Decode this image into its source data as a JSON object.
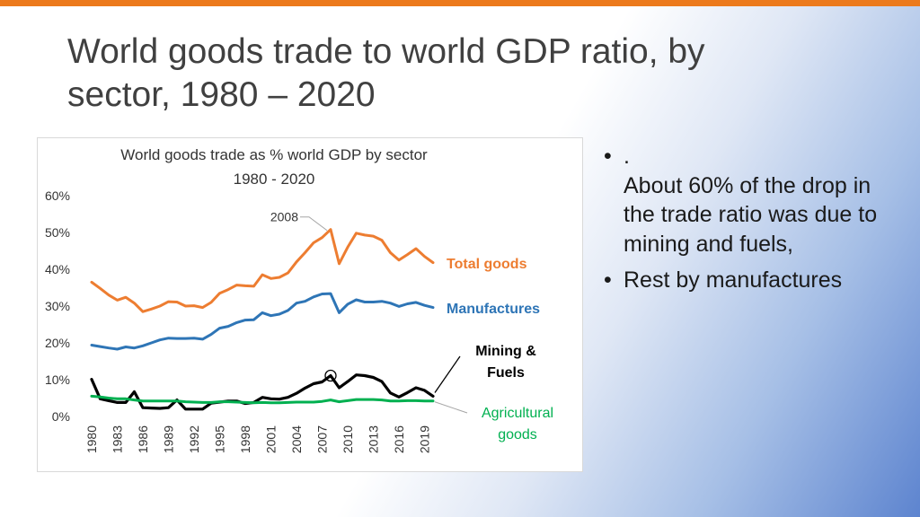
{
  "slide": {
    "title": "World goods trade to world GDP ratio, by sector, 1980 – 2020",
    "bullet_symbol": "•",
    "bullets": [
      ".\nAbout 60% of the drop in the trade ratio was due to mining and fuels,",
      "Rest by manufactures"
    ]
  },
  "chart_data": {
    "type": "line",
    "title": "World goods trade as % world GDP by sector",
    "subtitle": "1980 - 2020",
    "xlabel": "",
    "ylabel": "",
    "ylim": [
      0,
      60
    ],
    "y_ticks": [
      "0%",
      "10%",
      "20%",
      "30%",
      "40%",
      "50%",
      "60%"
    ],
    "x_ticks": [
      "1980",
      "1983",
      "1986",
      "1989",
      "1992",
      "1995",
      "1998",
      "2001",
      "2004",
      "2007",
      "2010",
      "2013",
      "2016",
      "2019"
    ],
    "x": [
      1980,
      1981,
      1982,
      1983,
      1984,
      1985,
      1986,
      1987,
      1988,
      1989,
      1990,
      1991,
      1992,
      1993,
      1994,
      1995,
      1996,
      1997,
      1998,
      1999,
      2000,
      2001,
      2002,
      2003,
      2004,
      2005,
      2006,
      2007,
      2008,
      2009,
      2010,
      2011,
      2012,
      2013,
      2014,
      2015,
      2016,
      2017,
      2018,
      2019,
      2020
    ],
    "grid": false,
    "legend": "none",
    "series": [
      {
        "name": "Total goods",
        "color": "#ed7d31",
        "values": [
          36.5,
          34.8,
          33.0,
          31.6,
          32.4,
          30.8,
          28.5,
          29.2,
          30.0,
          31.2,
          31.1,
          30.0,
          30.1,
          29.6,
          31.0,
          33.5,
          34.5,
          35.7,
          35.5,
          35.4,
          38.5,
          37.5,
          37.8,
          39.0,
          42.0,
          44.5,
          47.2,
          48.6,
          50.8,
          41.5,
          46.0,
          49.8,
          49.3,
          49.0,
          47.9,
          44.5,
          42.5,
          44.0,
          45.6,
          43.5,
          41.8
        ]
      },
      {
        "name": "Manufactures",
        "color": "#2e75b6",
        "values": [
          19.4,
          19.0,
          18.6,
          18.3,
          18.9,
          18.6,
          19.2,
          20.0,
          20.8,
          21.3,
          21.2,
          21.2,
          21.3,
          21.0,
          22.3,
          24.0,
          24.5,
          25.5,
          26.2,
          26.3,
          28.2,
          27.4,
          27.8,
          28.8,
          30.8,
          31.3,
          32.5,
          33.3,
          33.4,
          28.2,
          30.5,
          31.7,
          31.1,
          31.1,
          31.3,
          30.8,
          29.9,
          30.6,
          31.0,
          30.2,
          29.6
        ]
      },
      {
        "name": "Mining & Fuels",
        "color": "#000000",
        "values": [
          10.1,
          4.8,
          4.3,
          3.8,
          3.8,
          6.7,
          2.4,
          2.3,
          2.2,
          2.4,
          4.5,
          2.0,
          2.0,
          2.0,
          3.6,
          3.9,
          4.2,
          4.2,
          3.5,
          3.8,
          5.2,
          4.8,
          4.7,
          5.2,
          6.3,
          7.7,
          8.9,
          9.4,
          11.1,
          7.8,
          9.5,
          11.3,
          11.1,
          10.6,
          9.5,
          6.4,
          5.3,
          6.5,
          7.8,
          7.1,
          5.5
        ]
      },
      {
        "name": "Agricultural goods",
        "color": "#00b050",
        "values": [
          5.5,
          5.3,
          5.0,
          4.8,
          4.8,
          4.5,
          4.2,
          4.2,
          4.2,
          4.2,
          4.2,
          4.0,
          3.9,
          3.8,
          3.8,
          4.0,
          4.0,
          3.9,
          3.8,
          3.7,
          3.8,
          3.7,
          3.7,
          3.8,
          3.9,
          3.9,
          3.9,
          4.1,
          4.5,
          4.0,
          4.3,
          4.6,
          4.6,
          4.6,
          4.5,
          4.2,
          4.2,
          4.3,
          4.3,
          4.2,
          4.2
        ]
      }
    ],
    "series_labels": [
      {
        "text": "Total goods",
        "color": "#ed7d31"
      },
      {
        "text": "Manufactures",
        "color": "#2e75b6"
      },
      {
        "text": "Mining &\nFuels",
        "color": "#000000"
      },
      {
        "text": "Agricultural\ngoods",
        "color": "#00b050"
      }
    ],
    "annotations": [
      {
        "text": "2008",
        "x": 2008,
        "series": "Total goods"
      }
    ]
  }
}
